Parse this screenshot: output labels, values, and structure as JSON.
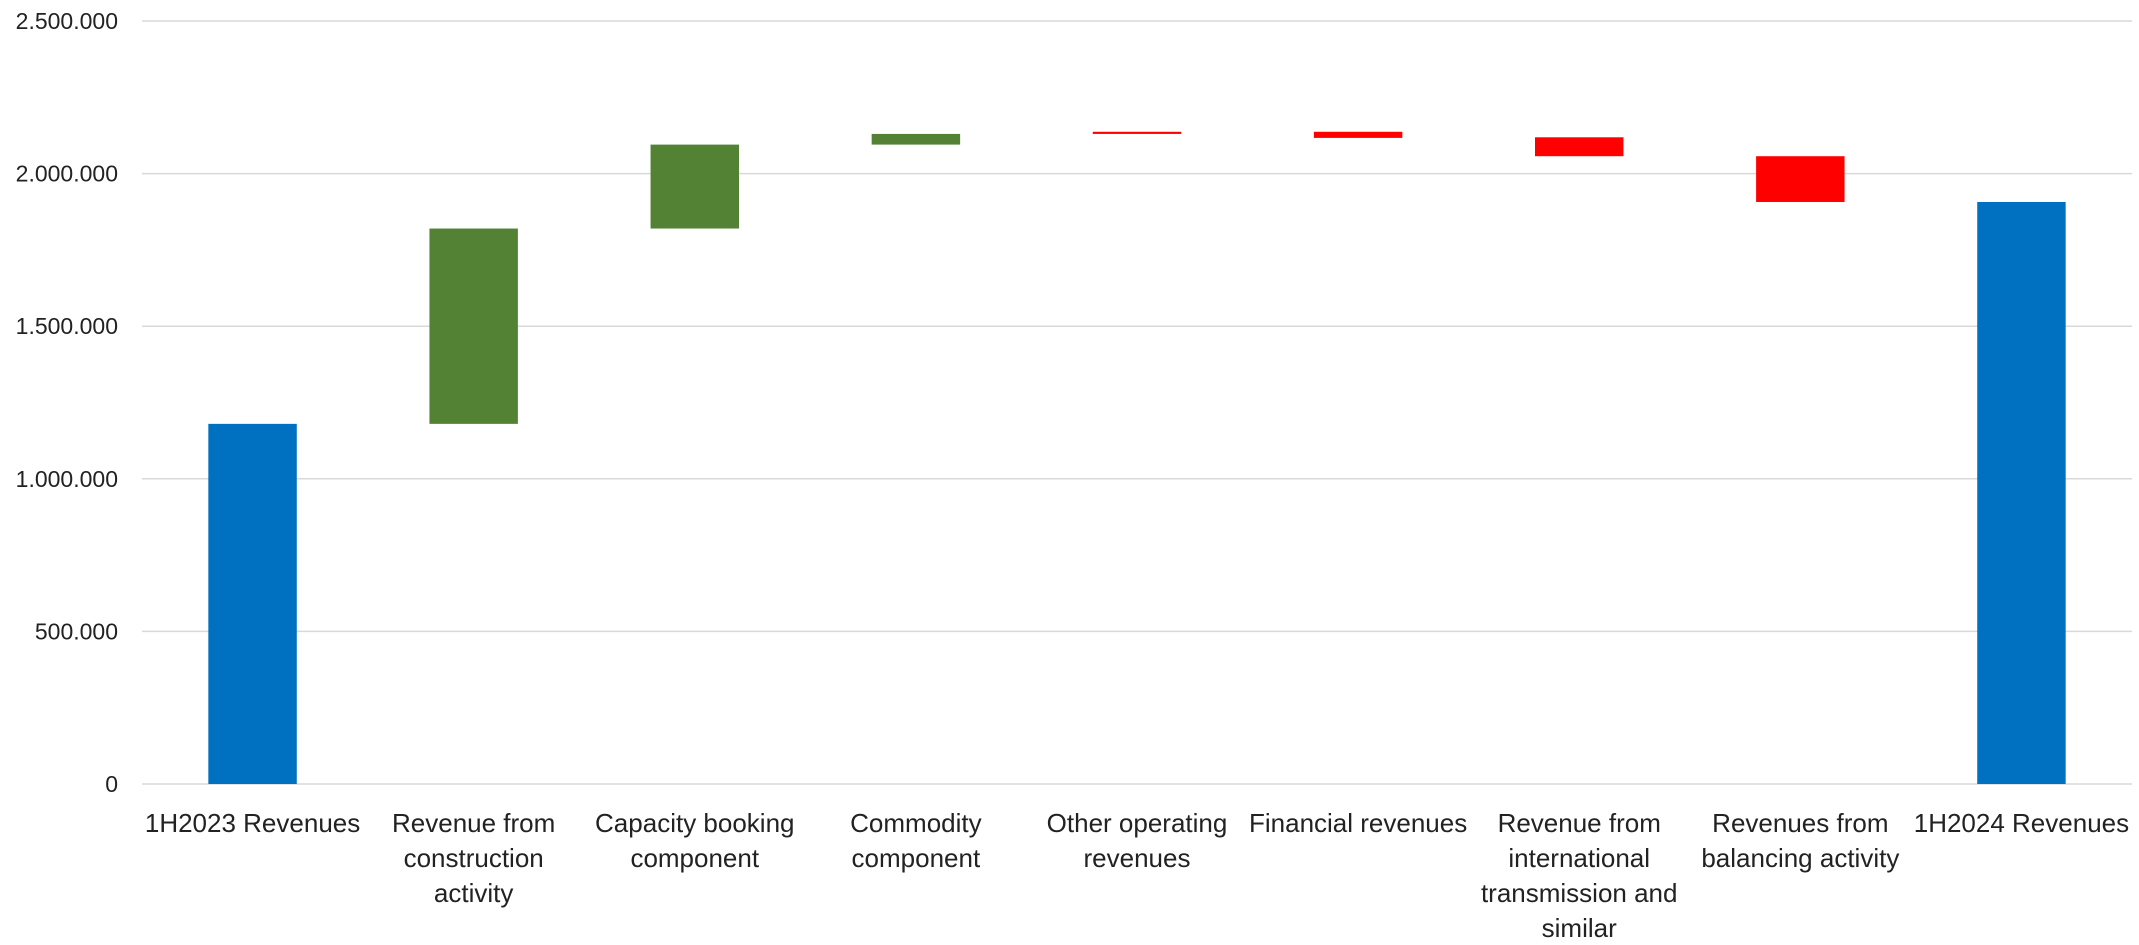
{
  "chart_data": {
    "type": "bar",
    "subtype": "waterfall",
    "title": "",
    "xlabel": "",
    "ylabel": "",
    "ylim": [
      0,
      2500000
    ],
    "yticks": [
      0,
      500000,
      1000000,
      1500000,
      2000000,
      2500000
    ],
    "ytick_labels": [
      "0",
      "500.000",
      "1.000.000",
      "1.500.000",
      "2.000.000",
      "2.500.000"
    ],
    "grid": true,
    "legend": "none",
    "categories": [
      "1H2023 Revenues",
      "Revenue from construction activity",
      "Capacity booking component",
      "Commodity component",
      "Other operating revenues",
      "Financial revenues",
      "Revenue from international transmission and similar",
      "Revenues from balancing activity",
      "1H2024 Revenues"
    ],
    "category_lines": [
      [
        "1H2023 Revenues"
      ],
      [
        "Revenue from",
        "construction",
        "activity"
      ],
      [
        "Capacity booking",
        "component"
      ],
      [
        "Commodity",
        "component"
      ],
      [
        "Other operating",
        "revenues"
      ],
      [
        "Financial revenues"
      ],
      [
        "Revenue from",
        "international",
        "transmission and",
        "similar"
      ],
      [
        "Revenues from",
        "balancing activity"
      ],
      [
        "1H2024 Revenues"
      ]
    ],
    "bars": [
      {
        "kind": "total",
        "start": 0,
        "end": 1180000
      },
      {
        "kind": "increase",
        "start": 1180000,
        "end": 1820000
      },
      {
        "kind": "increase",
        "start": 1820000,
        "end": 2095000
      },
      {
        "kind": "increase",
        "start": 2095000,
        "end": 2130000
      },
      {
        "kind": "decrease",
        "start": 2137000,
        "end": 2130000
      },
      {
        "kind": "decrease",
        "start": 2137000,
        "end": 2117000
      },
      {
        "kind": "decrease",
        "start": 2119000,
        "end": 2057000
      },
      {
        "kind": "decrease",
        "start": 2057000,
        "end": 1907000
      },
      {
        "kind": "total",
        "start": 0,
        "end": 1907000
      }
    ],
    "colors": {
      "total": "#0070C0",
      "increase": "#548235",
      "decrease": "#FF0000",
      "grid": "#D9D9D9"
    }
  }
}
